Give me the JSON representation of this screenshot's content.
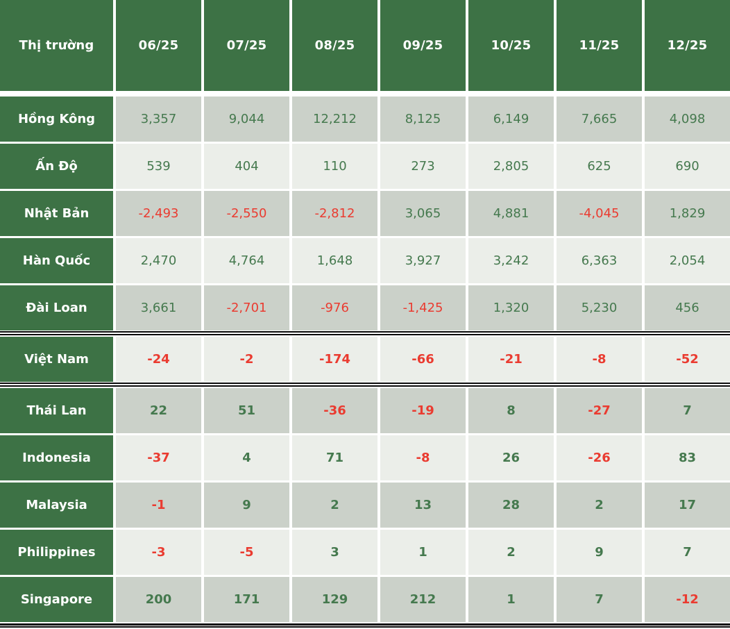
{
  "table": {
    "header": {
      "market_label": "Thị trường",
      "months": [
        "06/25",
        "07/25",
        "08/25",
        "09/25",
        "10/25",
        "11/25",
        "12/25"
      ]
    },
    "rows": [
      {
        "market": "Hồng Kông",
        "values": [
          "3,357",
          "9,044",
          "12,212",
          "8,125",
          "6,149",
          "7,665",
          "4,098"
        ],
        "bold": false,
        "rule_above": false
      },
      {
        "market": "Ấn Độ",
        "values": [
          "539",
          "404",
          "110",
          "273",
          "2,805",
          "625",
          "690"
        ],
        "bold": false,
        "rule_above": false
      },
      {
        "market": "Nhật Bản",
        "values": [
          "-2,493",
          "-2,550",
          "-2,812",
          "3,065",
          "4,881",
          "-4,045",
          "1,829"
        ],
        "bold": false,
        "rule_above": false
      },
      {
        "market": "Hàn Quốc",
        "values": [
          "2,470",
          "4,764",
          "1,648",
          "3,927",
          "3,242",
          "6,363",
          "2,054"
        ],
        "bold": false,
        "rule_above": false
      },
      {
        "market": "Đài Loan",
        "values": [
          "3,661",
          "-2,701",
          "-976",
          "-1,425",
          "1,320",
          "5,230",
          "456"
        ],
        "bold": false,
        "rule_above": false
      },
      {
        "market": "Việt Nam",
        "values": [
          "-24",
          "-2",
          "-174",
          "-66",
          "-21",
          "-8",
          "-52"
        ],
        "bold": true,
        "rule_above": true
      },
      {
        "market": "Thái Lan",
        "values": [
          "22",
          "51",
          "-36",
          "-19",
          "8",
          "-27",
          "7"
        ],
        "bold": true,
        "rule_above": true
      },
      {
        "market": "Indonesia",
        "values": [
          "-37",
          "4",
          "71",
          "-8",
          "26",
          "-26",
          "83"
        ],
        "bold": true,
        "rule_above": false
      },
      {
        "market": "Malaysia",
        "values": [
          "-1",
          "9",
          "2",
          "13",
          "28",
          "2",
          "17"
        ],
        "bold": true,
        "rule_above": false
      },
      {
        "market": "Philippines",
        "values": [
          "-3",
          "-5",
          "3",
          "1",
          "2",
          "9",
          "7"
        ],
        "bold": true,
        "rule_above": false
      },
      {
        "market": "Singapore",
        "values": [
          "200",
          "171",
          "129",
          "212",
          "1",
          "7",
          "-12"
        ],
        "bold": true,
        "rule_above": false
      }
    ]
  },
  "colors": {
    "header_background": "#3d7245",
    "row_shade_dark": "#cbd1c9",
    "row_shade_light": "#ebeee9",
    "positive_value": "#45794e",
    "negative_value": "#ea3b30",
    "header_text": "#ffffff",
    "rule_line": "#0a0a0a"
  },
  "chart_data": {
    "type": "table",
    "title": "Thị trường (foreign net flows by market, monthly)",
    "categories": [
      "06/25",
      "07/25",
      "08/25",
      "09/25",
      "10/25",
      "11/25",
      "12/25"
    ],
    "series": [
      {
        "name": "Hồng Kông",
        "values": [
          3357,
          9044,
          12212,
          8125,
          6149,
          7665,
          4098
        ]
      },
      {
        "name": "Ấn Độ",
        "values": [
          539,
          404,
          110,
          273,
          2805,
          625,
          690
        ]
      },
      {
        "name": "Nhật Bản",
        "values": [
          -2493,
          -2550,
          -2812,
          3065,
          4881,
          -4045,
          1829
        ]
      },
      {
        "name": "Hàn Quốc",
        "values": [
          2470,
          4764,
          1648,
          3927,
          3242,
          6363,
          2054
        ]
      },
      {
        "name": "Đài Loan",
        "values": [
          3661,
          -2701,
          -976,
          -1425,
          1320,
          5230,
          456
        ]
      },
      {
        "name": "Việt Nam",
        "values": [
          -24,
          -2,
          -174,
          -66,
          -21,
          -8,
          -52
        ]
      },
      {
        "name": "Thái Lan",
        "values": [
          22,
          51,
          -36,
          -19,
          8,
          -27,
          7
        ]
      },
      {
        "name": "Indonesia",
        "values": [
          -37,
          4,
          71,
          -8,
          26,
          -26,
          83
        ]
      },
      {
        "name": "Malaysia",
        "values": [
          -1,
          9,
          2,
          13,
          28,
          2,
          17
        ]
      },
      {
        "name": "Philippines",
        "values": [
          -3,
          -5,
          3,
          1,
          2,
          9,
          7
        ]
      },
      {
        "name": "Singapore",
        "values": [
          200,
          171,
          129,
          212,
          1,
          7,
          -12
        ]
      }
    ],
    "value_color_rule": "negative values red, non-negative values green",
    "layout": "first column market names on dark green, alternating gray row shading, double black rules framing Việt Nam row and at table bottom"
  }
}
